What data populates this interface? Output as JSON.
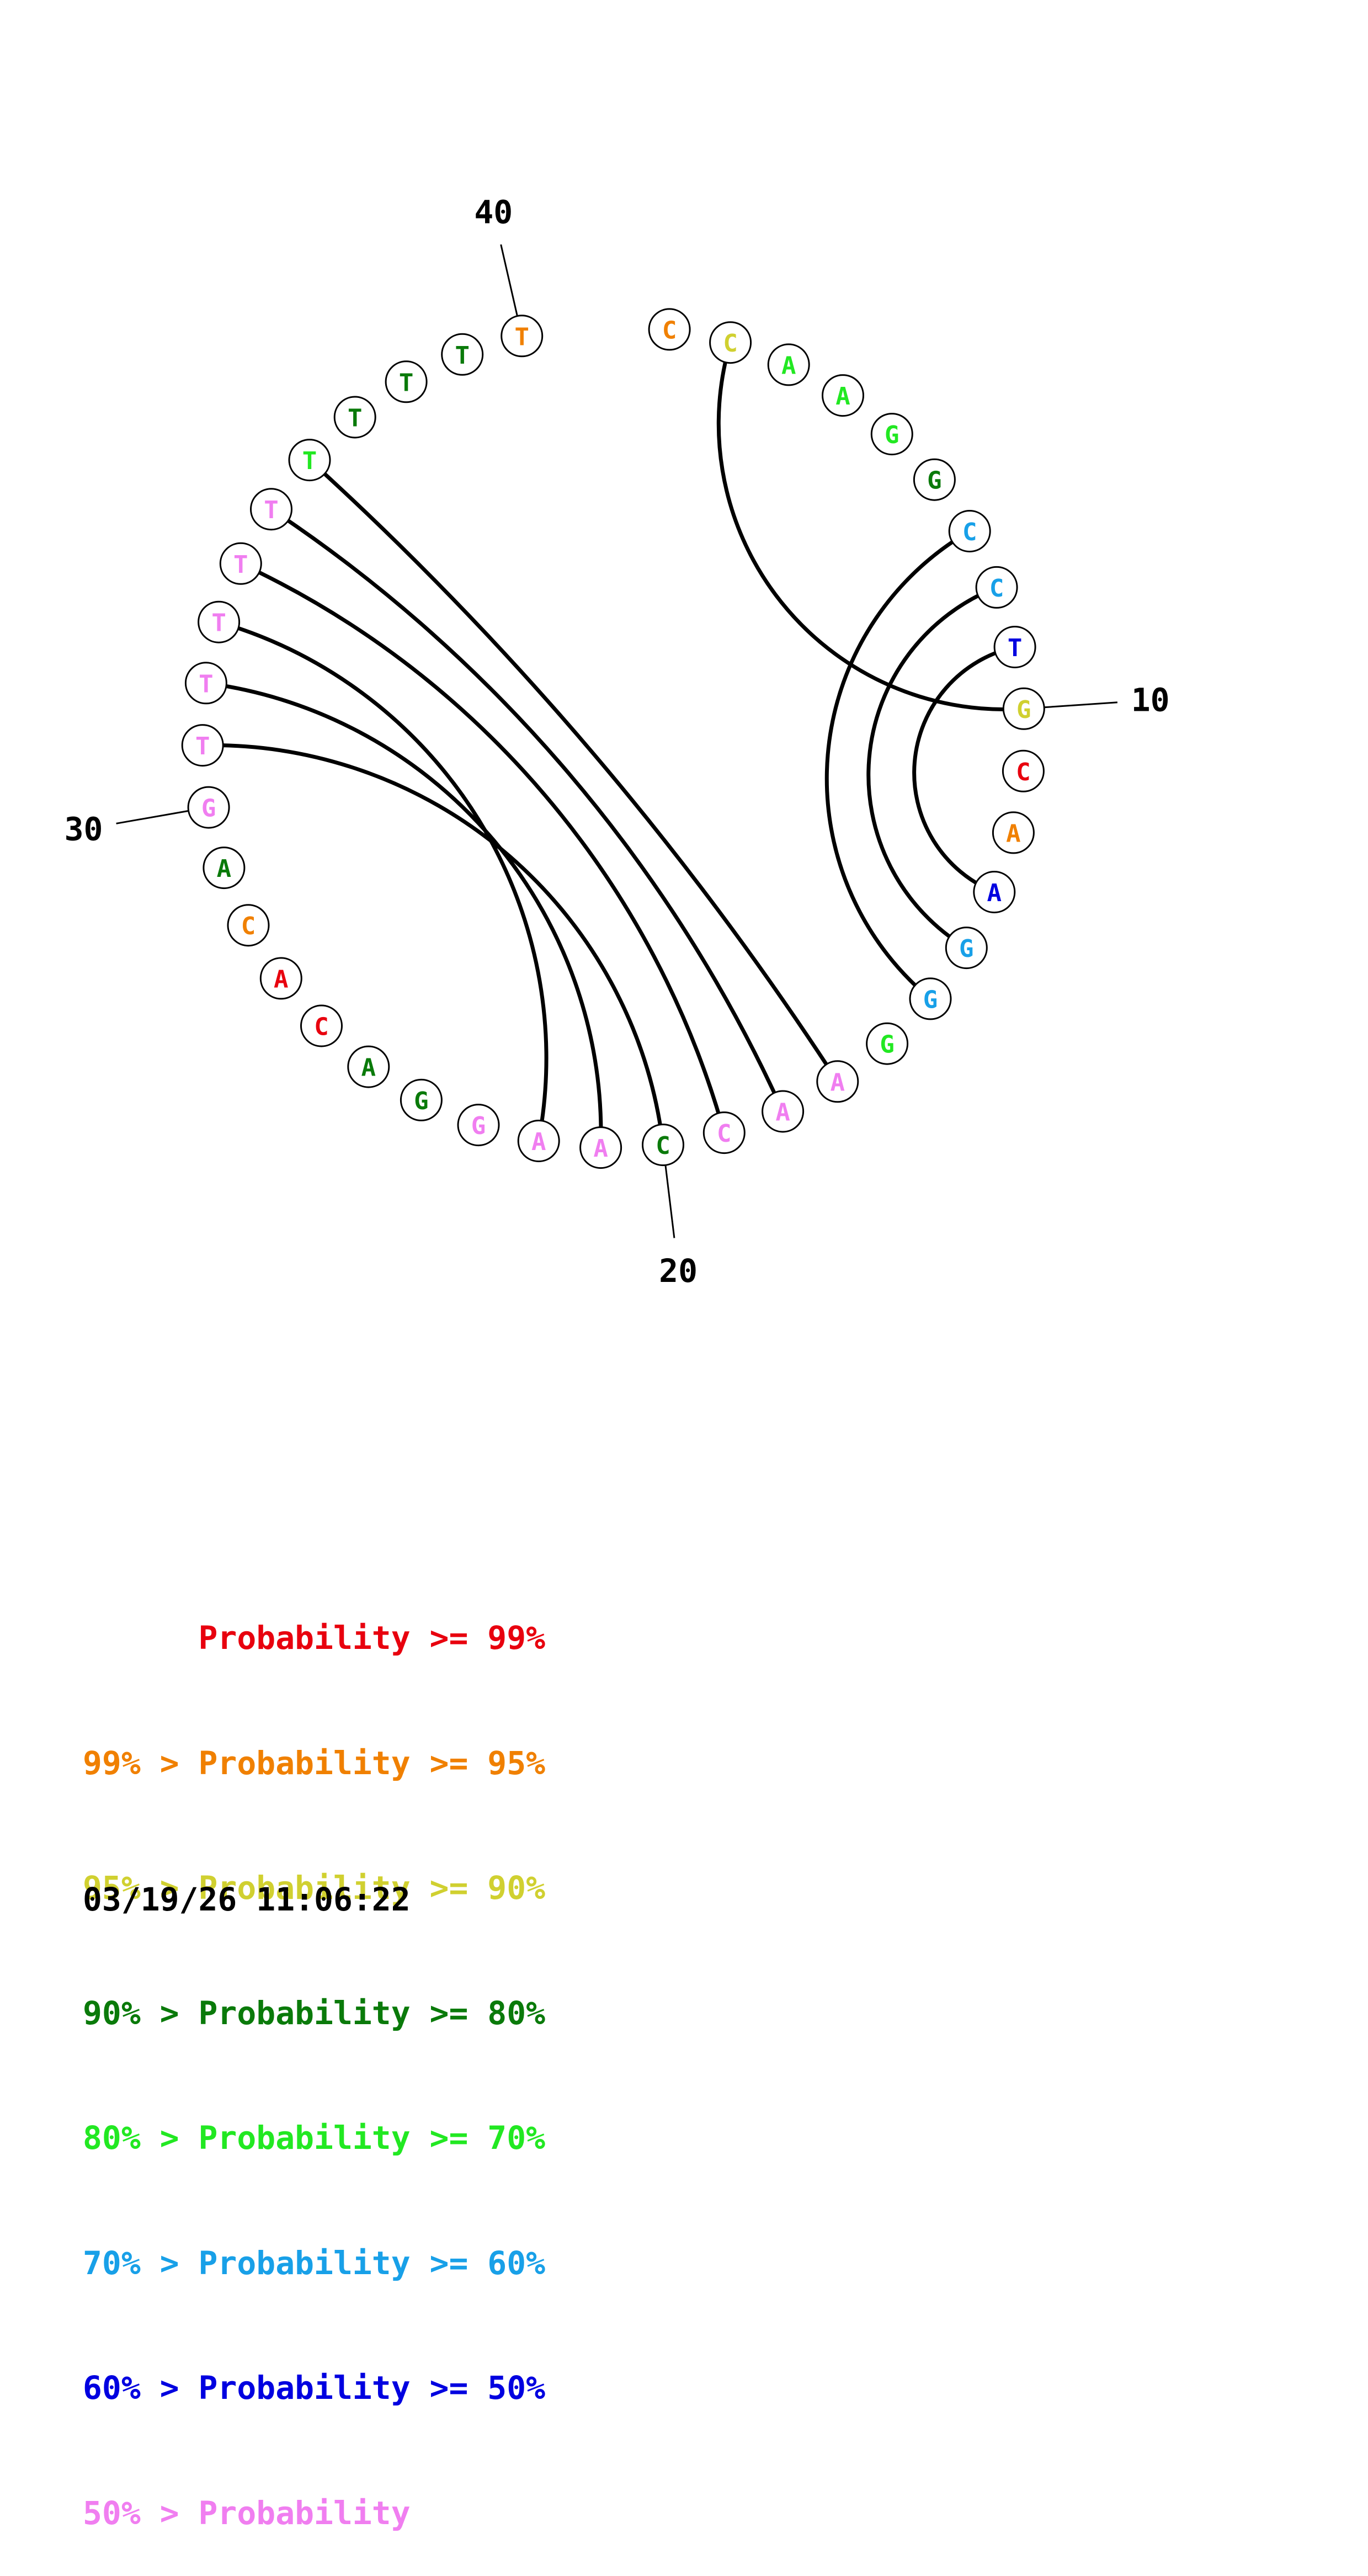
{
  "sequence": [
    "C",
    "C",
    "A",
    "A",
    "G",
    "G",
    "C",
    "C",
    "T",
    "G",
    "C",
    "A",
    "A",
    "G",
    "G",
    "G",
    "A",
    "A",
    "C",
    "C",
    "A",
    "A",
    "G",
    "G",
    "A",
    "C",
    "A",
    "C",
    "A",
    "G",
    "T",
    "T",
    "T",
    "T",
    "T",
    "T",
    "T",
    "T",
    "T",
    "T"
  ],
  "prob_class": [
    1,
    2,
    4,
    4,
    4,
    3,
    5,
    5,
    6,
    2,
    0,
    1,
    6,
    5,
    5,
    4,
    7,
    7,
    7,
    3,
    7,
    7,
    7,
    3,
    3,
    0,
    0,
    1,
    3,
    7,
    7,
    7,
    7,
    7,
    7,
    4,
    3,
    3,
    3,
    1
  ],
  "pairs": [
    [
      2,
      10
    ],
    [
      7,
      15
    ],
    [
      8,
      14
    ],
    [
      9,
      13
    ],
    [
      17,
      36
    ],
    [
      18,
      35
    ],
    [
      19,
      34
    ],
    [
      20,
      31
    ],
    [
      21,
      32
    ],
    [
      22,
      33
    ]
  ],
  "position_labels": [
    {
      "index": 10,
      "text": "10"
    },
    {
      "index": 20,
      "text": "20"
    },
    {
      "index": 30,
      "text": "30"
    },
    {
      "index": 40,
      "text": "40"
    }
  ],
  "colors": [
    "#e8000e",
    "#f08000",
    "#d0d030",
    "#0a7a0a",
    "#22e822",
    "#18a0e8",
    "#0000e0",
    "#f07ef0"
  ],
  "legend": [
    {
      "prefix": "    ",
      "text": "Probability >= 99%"
    },
    {
      "prefix": "99% > ",
      "text": "Probability >= 95%"
    },
    {
      "prefix": "95% > ",
      "text": "Probability >= 90%"
    },
    {
      "prefix": "90% > ",
      "text": "Probability >= 80%"
    },
    {
      "prefix": "80% > ",
      "text": "Probability >= 70%"
    },
    {
      "prefix": "70% > ",
      "text": "Probability >= 60%"
    },
    {
      "prefix": "60% > ",
      "text": "Probability >= 50%"
    },
    {
      "prefix": "50% > ",
      "text": "Probability"
    }
  ],
  "legend_lines": [
    "      Probability >= 99%",
    "99% > Probability >= 95%",
    "95% > Probability >= 90%",
    "90% > Probability >= 80%",
    "80% > Probability >= 70%",
    "70% > Probability >= 60%",
    "60% > Probability >= 50%",
    "50% > Probability"
  ],
  "timestamp": "03/19/26 11:06:22"
}
